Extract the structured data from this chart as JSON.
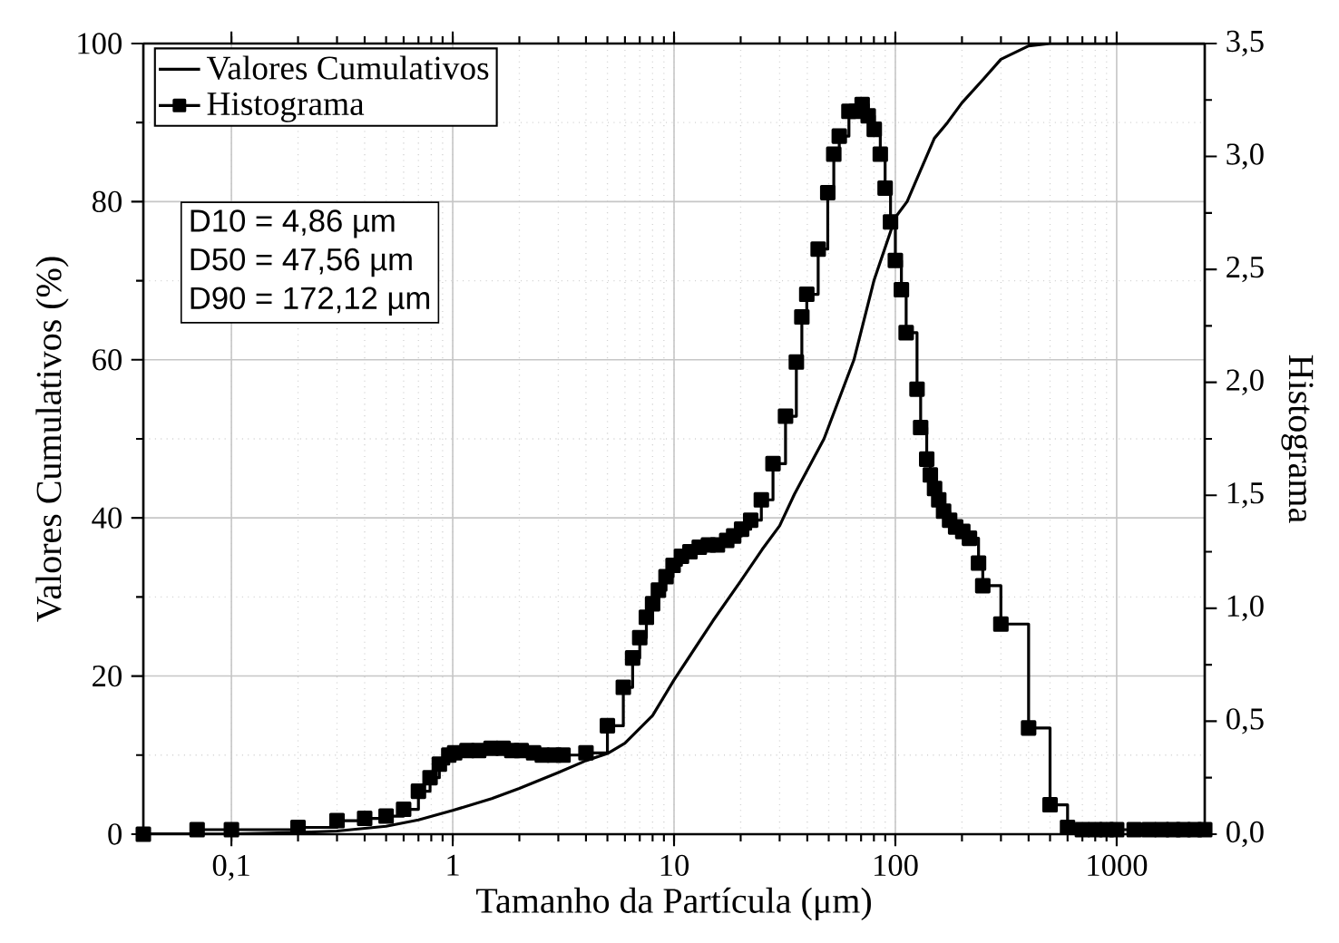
{
  "chart_data": {
    "type": "line",
    "xlabel": "Tamanho da Partícula (μm)",
    "ylabel": "Valores Cumulativos (%)",
    "y2label": "Histograma",
    "log": "x",
    "grid": true,
    "legend": "top left",
    "xlim": [
      0.04,
      2500
    ],
    "xticks": [
      {
        "value": 0.1,
        "label": "0,1"
      },
      {
        "value": 1,
        "label": "1"
      },
      {
        "value": 10,
        "label": "10"
      },
      {
        "value": 100,
        "label": "100"
      },
      {
        "value": 1000,
        "label": "1000"
      }
    ],
    "ylim": [
      0,
      100
    ],
    "yticks": [
      0,
      20,
      40,
      60,
      80,
      100
    ],
    "y2lim": [
      0,
      3.5
    ],
    "y2ticks": [
      {
        "value": 0,
        "label": "0,0"
      },
      {
        "value": 0.5,
        "label": "0,5"
      },
      {
        "value": 1,
        "label": "1,0"
      },
      {
        "value": 1.5,
        "label": "1,5"
      },
      {
        "value": 2,
        "label": "2,0"
      },
      {
        "value": 2.5,
        "label": "2,5"
      },
      {
        "value": 3,
        "label": "3,0"
      },
      {
        "value": 3.5,
        "label": "3,5"
      }
    ],
    "annotations": [
      "D10 = 4,86 µm",
      "D50 = 47,56 µm",
      "D90 = 172,12 µm"
    ],
    "series": [
      {
        "name": "Valores Cumulativos",
        "color": "#000000",
        "marker": "none",
        "x": [
          0.04,
          0.1,
          0.2,
          0.3,
          0.5,
          0.7,
          1,
          1.5,
          2,
          3,
          4,
          5,
          6,
          8,
          10,
          15,
          20,
          25,
          30,
          35,
          47.6,
          65,
          80,
          100,
          113,
          150,
          172,
          200,
          250,
          300,
          400,
          500,
          1000,
          2500
        ],
        "values": [
          0,
          0,
          0.2,
          0.4,
          1.0,
          1.8,
          3.0,
          4.5,
          5.8,
          7.8,
          9.3,
          10.2,
          11.5,
          15,
          19.5,
          27,
          32,
          36,
          39,
          43,
          50,
          60,
          70,
          78,
          80,
          88,
          90,
          92.5,
          95.5,
          98,
          99.7,
          100,
          100,
          100
        ]
      },
      {
        "name": "Histograma",
        "type": "step",
        "axis": "y2",
        "color": "#000000",
        "marker": "square",
        "x": [
          0.04,
          0.07,
          0.1,
          0.2,
          0.3,
          0.4,
          0.5,
          0.6,
          0.7,
          0.79,
          0.87,
          0.96,
          1.02,
          1.16,
          1.31,
          1.49,
          1.69,
          1.85,
          2.04,
          2.32,
          2.54,
          2.87,
          3.15,
          4.0,
          5.0,
          5.9,
          6.5,
          7.0,
          7.5,
          8.0,
          8.5,
          9.2,
          9.9,
          10.8,
          11.8,
          13.0,
          14.3,
          15.7,
          17.3,
          18.6,
          20.2,
          22.2,
          24.8,
          28.0,
          31.9,
          35.7,
          37.8,
          39.8,
          44.8,
          49.5,
          52.7,
          55.8,
          61.7,
          66.5,
          70.8,
          75.4,
          80.3,
          85.5,
          89.9,
          95.1,
          100,
          106.5,
          111.9,
          125.3,
          130.1,
          138.6,
          143.9,
          150.4,
          157.1,
          165.2,
          175.9,
          187.3,
          201.7,
          216.2,
          237.6,
          248.3,
          299.8,
          400,
          500,
          600,
          700,
          800,
          900,
          1000,
          1200,
          1400,
          1600,
          1800,
          2000,
          2250,
          2500
        ],
        "values": [
          0.0,
          0.02,
          0.02,
          0.03,
          0.06,
          0.07,
          0.08,
          0.11,
          0.19,
          0.25,
          0.31,
          0.35,
          0.36,
          0.37,
          0.37,
          0.38,
          0.38,
          0.37,
          0.37,
          0.36,
          0.35,
          0.35,
          0.35,
          0.36,
          0.48,
          0.65,
          0.78,
          0.87,
          0.96,
          1.02,
          1.08,
          1.14,
          1.19,
          1.23,
          1.25,
          1.27,
          1.28,
          1.28,
          1.3,
          1.32,
          1.35,
          1.39,
          1.48,
          1.64,
          1.85,
          2.09,
          2.29,
          2.39,
          2.59,
          2.84,
          3.01,
          3.09,
          3.2,
          3.2,
          3.23,
          3.18,
          3.12,
          3.01,
          2.86,
          2.71,
          2.54,
          2.41,
          2.22,
          1.97,
          1.8,
          1.66,
          1.59,
          1.53,
          1.48,
          1.43,
          1.39,
          1.36,
          1.34,
          1.31,
          1.2,
          1.1,
          0.93,
          0.47,
          0.13,
          0.03,
          0.02,
          0.02,
          0.02,
          0.02,
          0.02,
          0.02,
          0.02,
          0.02,
          0.02,
          0.02,
          0.02
        ]
      }
    ]
  }
}
